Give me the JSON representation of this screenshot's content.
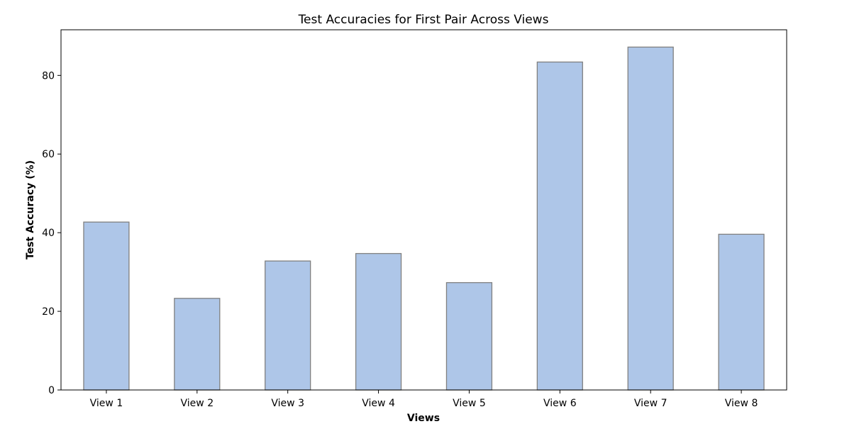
{
  "chart_data": {
    "type": "bar",
    "title": "Test Accuracies for First Pair Across Views",
    "xlabel": "Views",
    "ylabel": "Test Accuracy (%)",
    "categories": [
      "View 1",
      "View 2",
      "View 3",
      "View 4",
      "View 5",
      "View 6",
      "View 7",
      "View 8"
    ],
    "values": [
      42.7,
      23.3,
      32.8,
      34.7,
      27.3,
      83.4,
      87.2,
      39.6
    ],
    "ylim": [
      0,
      91.6
    ],
    "yticks": [
      0,
      20,
      40,
      60,
      80
    ],
    "grid": false,
    "bar_color": "#aec6e8",
    "bar_edge_color": "#808080"
  }
}
